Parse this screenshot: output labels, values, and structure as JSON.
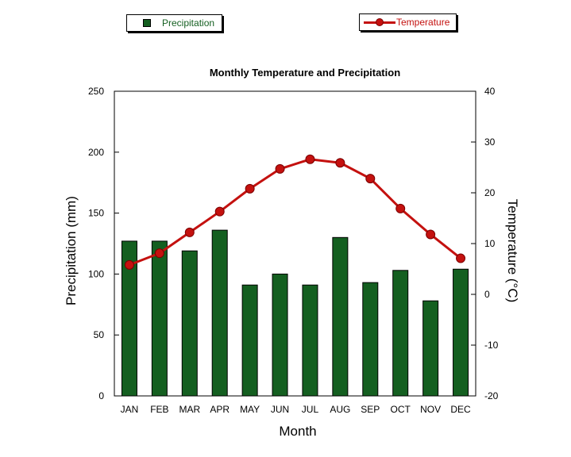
{
  "legend": {
    "precipitation_label": "Precipitation",
    "temperature_label": "Temperature"
  },
  "colors": {
    "bar_fill": "#145f20",
    "line": "#c4110f"
  },
  "chart_data": {
    "type": "bar+line",
    "title": "Monthly Temperature and Precipitation",
    "xlabel": "Month",
    "ylabel_left": "Precipitation (mm)",
    "ylabel_right": "Temperature (°C)",
    "categories": [
      "JAN",
      "FEB",
      "MAR",
      "APR",
      "MAY",
      "JUN",
      "JUL",
      "AUG",
      "SEP",
      "OCT",
      "NOV",
      "DEC"
    ],
    "ylim_left": [
      0,
      250
    ],
    "yticks_left": [
      0,
      50,
      100,
      150,
      200,
      250
    ],
    "ylim_right": [
      -20,
      40
    ],
    "yticks_right": [
      -20,
      -10,
      0,
      10,
      20,
      30,
      40
    ],
    "series": [
      {
        "name": "Precipitation",
        "type": "bar",
        "axis": "left",
        "values": [
          127,
          127,
          119,
          136,
          91,
          100,
          91,
          130,
          93,
          103,
          78,
          104
        ]
      },
      {
        "name": "Temperature",
        "type": "line",
        "axis": "right",
        "values": [
          5.8,
          8.1,
          12.2,
          16.3,
          20.8,
          24.7,
          26.6,
          25.9,
          22.8,
          16.9,
          11.8,
          7.1
        ]
      }
    ],
    "legend_placement": "top",
    "grid": false
  }
}
